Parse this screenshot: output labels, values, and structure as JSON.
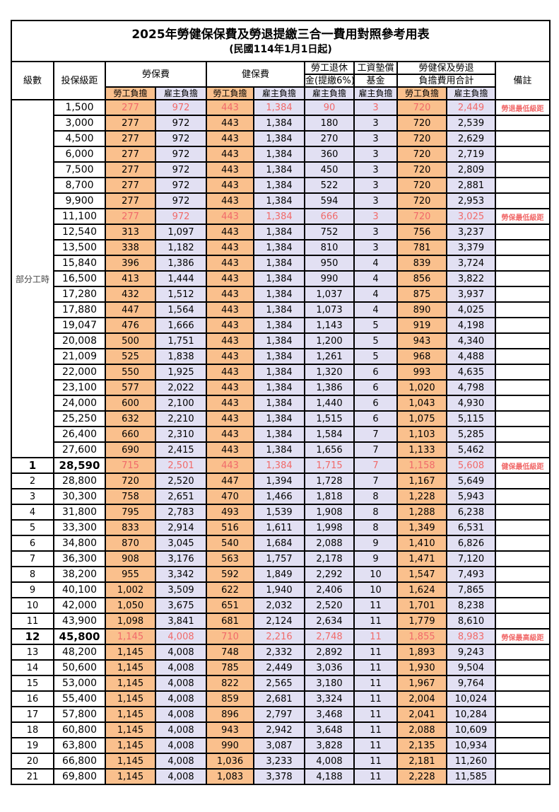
{
  "title": "2025年勞健保保費及勞退提繳三合一費用對照參考用表",
  "subtitle": "(民國114年1月1日起)",
  "colors": {
    "employee_bg": "#FAC08D",
    "employer_bg": "#E2E0F3",
    "highlight_text": "#F16A6A",
    "border": "#000000"
  },
  "header": {
    "level": "級數",
    "bracket": "投保級距",
    "labor_ins": "勞保費",
    "health_ins": "健保費",
    "pension_line1": "勞工退休",
    "pension_line2": "金(提繳6%)",
    "wage_fund_line1": "工資墊償",
    "wage_fund_line2": "基金",
    "total_line1": "勞健保及勞退",
    "total_line2": "負擔費用合計",
    "remark": "備註",
    "employee_share": "勞工負擔",
    "employer_share": "雇主負擔"
  },
  "part_time_label": "部分工時",
  "part_time_rowspan": 23,
  "rows": [
    {
      "lv": "",
      "br": "1,500",
      "a": "277",
      "b": "972",
      "c": "443",
      "d": "1,384",
      "e": "90",
      "f": "3",
      "g": "720",
      "h": "2,449",
      "rm": "勞退最低級距",
      "red": true
    },
    {
      "lv": "",
      "br": "3,000",
      "a": "277",
      "b": "972",
      "c": "443",
      "d": "1,384",
      "e": "180",
      "f": "3",
      "g": "720",
      "h": "2,539",
      "rm": ""
    },
    {
      "lv": "",
      "br": "4,500",
      "a": "277",
      "b": "972",
      "c": "443",
      "d": "1,384",
      "e": "270",
      "f": "3",
      "g": "720",
      "h": "2,629",
      "rm": ""
    },
    {
      "lv": "",
      "br": "6,000",
      "a": "277",
      "b": "972",
      "c": "443",
      "d": "1,384",
      "e": "360",
      "f": "3",
      "g": "720",
      "h": "2,719",
      "rm": ""
    },
    {
      "lv": "",
      "br": "7,500",
      "a": "277",
      "b": "972",
      "c": "443",
      "d": "1,384",
      "e": "450",
      "f": "3",
      "g": "720",
      "h": "2,809",
      "rm": ""
    },
    {
      "lv": "",
      "br": "8,700",
      "a": "277",
      "b": "972",
      "c": "443",
      "d": "1,384",
      "e": "522",
      "f": "3",
      "g": "720",
      "h": "2,881",
      "rm": ""
    },
    {
      "lv": "",
      "br": "9,900",
      "a": "277",
      "b": "972",
      "c": "443",
      "d": "1,384",
      "e": "594",
      "f": "3",
      "g": "720",
      "h": "2,953",
      "rm": ""
    },
    {
      "lv": "",
      "br": "11,100",
      "a": "277",
      "b": "972",
      "c": "443",
      "d": "1,384",
      "e": "666",
      "f": "3",
      "g": "720",
      "h": "3,025",
      "rm": "勞保最低級距",
      "red": true
    },
    {
      "lv": "",
      "br": "12,540",
      "a": "313",
      "b": "1,097",
      "c": "443",
      "d": "1,384",
      "e": "752",
      "f": "3",
      "g": "756",
      "h": "3,237",
      "rm": ""
    },
    {
      "lv": "",
      "br": "13,500",
      "a": "338",
      "b": "1,182",
      "c": "443",
      "d": "1,384",
      "e": "810",
      "f": "3",
      "g": "781",
      "h": "3,379",
      "rm": ""
    },
    {
      "lv": "",
      "br": "15,840",
      "a": "396",
      "b": "1,386",
      "c": "443",
      "d": "1,384",
      "e": "950",
      "f": "4",
      "g": "839",
      "h": "3,724",
      "rm": ""
    },
    {
      "lv": "",
      "br": "16,500",
      "a": "413",
      "b": "1,444",
      "c": "443",
      "d": "1,384",
      "e": "990",
      "f": "4",
      "g": "856",
      "h": "3,822",
      "rm": ""
    },
    {
      "lv": "",
      "br": "17,280",
      "a": "432",
      "b": "1,512",
      "c": "443",
      "d": "1,384",
      "e": "1,037",
      "f": "4",
      "g": "875",
      "h": "3,937",
      "rm": ""
    },
    {
      "lv": "",
      "br": "17,880",
      "a": "447",
      "b": "1,564",
      "c": "443",
      "d": "1,384",
      "e": "1,073",
      "f": "4",
      "g": "890",
      "h": "4,025",
      "rm": ""
    },
    {
      "lv": "",
      "br": "19,047",
      "a": "476",
      "b": "1,666",
      "c": "443",
      "d": "1,384",
      "e": "1,143",
      "f": "5",
      "g": "919",
      "h": "4,198",
      "rm": ""
    },
    {
      "lv": "",
      "br": "20,008",
      "a": "500",
      "b": "1,751",
      "c": "443",
      "d": "1,384",
      "e": "1,200",
      "f": "5",
      "g": "943",
      "h": "4,340",
      "rm": ""
    },
    {
      "lv": "",
      "br": "21,009",
      "a": "525",
      "b": "1,838",
      "c": "443",
      "d": "1,384",
      "e": "1,261",
      "f": "5",
      "g": "968",
      "h": "4,488",
      "rm": ""
    },
    {
      "lv": "",
      "br": "22,000",
      "a": "550",
      "b": "1,925",
      "c": "443",
      "d": "1,384",
      "e": "1,320",
      "f": "6",
      "g": "993",
      "h": "4,635",
      "rm": ""
    },
    {
      "lv": "",
      "br": "23,100",
      "a": "577",
      "b": "2,022",
      "c": "443",
      "d": "1,384",
      "e": "1,386",
      "f": "6",
      "g": "1,020",
      "h": "4,798",
      "rm": ""
    },
    {
      "lv": "",
      "br": "24,000",
      "a": "600",
      "b": "2,100",
      "c": "443",
      "d": "1,384",
      "e": "1,440",
      "f": "6",
      "g": "1,043",
      "h": "4,930",
      "rm": ""
    },
    {
      "lv": "",
      "br": "25,250",
      "a": "632",
      "b": "2,210",
      "c": "443",
      "d": "1,384",
      "e": "1,515",
      "f": "6",
      "g": "1,075",
      "h": "5,115",
      "rm": ""
    },
    {
      "lv": "",
      "br": "26,400",
      "a": "660",
      "b": "2,310",
      "c": "443",
      "d": "1,384",
      "e": "1,584",
      "f": "7",
      "g": "1,103",
      "h": "5,285",
      "rm": ""
    },
    {
      "lv": "",
      "br": "27,600",
      "a": "690",
      "b": "2,415",
      "c": "443",
      "d": "1,384",
      "e": "1,656",
      "f": "7",
      "g": "1,133",
      "h": "5,462",
      "rm": ""
    },
    {
      "lv": "1",
      "br": "28,590",
      "a": "715",
      "b": "2,501",
      "c": "443",
      "d": "1,384",
      "e": "1,715",
      "f": "7",
      "g": "1,158",
      "h": "5,608",
      "rm": "健保最低級距",
      "red": true,
      "em": true
    },
    {
      "lv": "2",
      "br": "28,800",
      "a": "720",
      "b": "2,520",
      "c": "447",
      "d": "1,394",
      "e": "1,728",
      "f": "7",
      "g": "1,167",
      "h": "5,649",
      "rm": ""
    },
    {
      "lv": "3",
      "br": "30,300",
      "a": "758",
      "b": "2,651",
      "c": "470",
      "d": "1,466",
      "e": "1,818",
      "f": "8",
      "g": "1,228",
      "h": "5,943",
      "rm": ""
    },
    {
      "lv": "4",
      "br": "31,800",
      "a": "795",
      "b": "2,783",
      "c": "493",
      "d": "1,539",
      "e": "1,908",
      "f": "8",
      "g": "1,288",
      "h": "6,238",
      "rm": ""
    },
    {
      "lv": "5",
      "br": "33,300",
      "a": "833",
      "b": "2,914",
      "c": "516",
      "d": "1,611",
      "e": "1,998",
      "f": "8",
      "g": "1,349",
      "h": "6,531",
      "rm": ""
    },
    {
      "lv": "6",
      "br": "34,800",
      "a": "870",
      "b": "3,045",
      "c": "540",
      "d": "1,684",
      "e": "2,088",
      "f": "9",
      "g": "1,410",
      "h": "6,826",
      "rm": ""
    },
    {
      "lv": "7",
      "br": "36,300",
      "a": "908",
      "b": "3,176",
      "c": "563",
      "d": "1,757",
      "e": "2,178",
      "f": "9",
      "g": "1,471",
      "h": "7,120",
      "rm": ""
    },
    {
      "lv": "8",
      "br": "38,200",
      "a": "955",
      "b": "3,342",
      "c": "592",
      "d": "1,849",
      "e": "2,292",
      "f": "10",
      "g": "1,547",
      "h": "7,493",
      "rm": ""
    },
    {
      "lv": "9",
      "br": "40,100",
      "a": "1,002",
      "b": "3,509",
      "c": "622",
      "d": "1,940",
      "e": "2,406",
      "f": "10",
      "g": "1,624",
      "h": "7,865",
      "rm": ""
    },
    {
      "lv": "10",
      "br": "42,000",
      "a": "1,050",
      "b": "3,675",
      "c": "651",
      "d": "2,032",
      "e": "2,520",
      "f": "11",
      "g": "1,701",
      "h": "8,238",
      "rm": ""
    },
    {
      "lv": "11",
      "br": "43,900",
      "a": "1,098",
      "b": "3,841",
      "c": "681",
      "d": "2,124",
      "e": "2,634",
      "f": "11",
      "g": "1,779",
      "h": "8,610",
      "rm": ""
    },
    {
      "lv": "12",
      "br": "45,800",
      "a": "1,145",
      "b": "4,008",
      "c": "710",
      "d": "2,216",
      "e": "2,748",
      "f": "11",
      "g": "1,855",
      "h": "8,983",
      "rm": "勞保最高級距",
      "red": true,
      "em": true
    },
    {
      "lv": "13",
      "br": "48,200",
      "a": "1,145",
      "b": "4,008",
      "c": "748",
      "d": "2,332",
      "e": "2,892",
      "f": "11",
      "g": "1,893",
      "h": "9,243",
      "rm": ""
    },
    {
      "lv": "14",
      "br": "50,600",
      "a": "1,145",
      "b": "4,008",
      "c": "785",
      "d": "2,449",
      "e": "3,036",
      "f": "11",
      "g": "1,930",
      "h": "9,504",
      "rm": ""
    },
    {
      "lv": "15",
      "br": "53,000",
      "a": "1,145",
      "b": "4,008",
      "c": "822",
      "d": "2,565",
      "e": "3,180",
      "f": "11",
      "g": "1,967",
      "h": "9,764",
      "rm": ""
    },
    {
      "lv": "16",
      "br": "55,400",
      "a": "1,145",
      "b": "4,008",
      "c": "859",
      "d": "2,681",
      "e": "3,324",
      "f": "11",
      "g": "2,004",
      "h": "10,024",
      "rm": ""
    },
    {
      "lv": "17",
      "br": "57,800",
      "a": "1,145",
      "b": "4,008",
      "c": "896",
      "d": "2,797",
      "e": "3,468",
      "f": "11",
      "g": "2,041",
      "h": "10,284",
      "rm": ""
    },
    {
      "lv": "18",
      "br": "60,800",
      "a": "1,145",
      "b": "4,008",
      "c": "943",
      "d": "2,942",
      "e": "3,648",
      "f": "11",
      "g": "2,088",
      "h": "10,609",
      "rm": ""
    },
    {
      "lv": "19",
      "br": "63,800",
      "a": "1,145",
      "b": "4,008",
      "c": "990",
      "d": "3,087",
      "e": "3,828",
      "f": "11",
      "g": "2,135",
      "h": "10,934",
      "rm": ""
    },
    {
      "lv": "20",
      "br": "66,800",
      "a": "1,145",
      "b": "4,008",
      "c": "1,036",
      "d": "3,233",
      "e": "4,008",
      "f": "11",
      "g": "2,181",
      "h": "11,260",
      "rm": ""
    },
    {
      "lv": "21",
      "br": "69,800",
      "a": "1,145",
      "b": "4,008",
      "c": "1,083",
      "d": "3,378",
      "e": "4,188",
      "f": "11",
      "g": "2,228",
      "h": "11,585",
      "rm": ""
    }
  ]
}
